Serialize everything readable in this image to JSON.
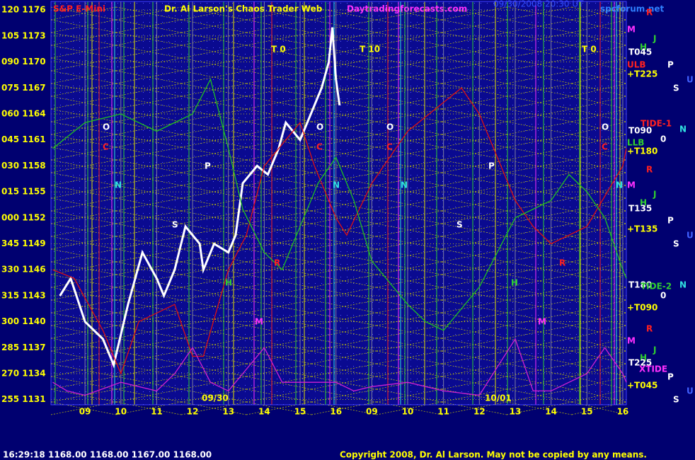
{
  "chart_data": {
    "type": "line",
    "header": {
      "symbol": "S&P E-Mini",
      "title": "Dr. Al Larson's Chaos Trader Web",
      "site": "Daytradingforecasts.com",
      "timestamp": "09/30/2008 20:30 UT",
      "forum": "spcforum.net"
    },
    "ylim": [
      1130.4,
      1177
    ],
    "yticks": [
      {
        "value": 1176,
        "label": "120 1176"
      },
      {
        "value": 1173,
        "label": "105 1173"
      },
      {
        "value": 1170,
        "label": "090 1170"
      },
      {
        "value": 1167,
        "label": "075 1167"
      },
      {
        "value": 1164,
        "label": "060 1164"
      },
      {
        "value": 1161,
        "label": "045 1161"
      },
      {
        "value": 1158,
        "label": "030 1158"
      },
      {
        "value": 1155,
        "label": "015 1155"
      },
      {
        "value": 1152,
        "label": "000 1152"
      },
      {
        "value": 1149,
        "label": "345 1149"
      },
      {
        "value": 1146,
        "label": "330 1146"
      },
      {
        "value": 1143,
        "label": "315 1143"
      },
      {
        "value": 1140,
        "label": "300 1140"
      },
      {
        "value": 1137,
        "label": "285 1137"
      },
      {
        "value": 1134,
        "label": "270 1134"
      },
      {
        "value": 1131,
        "label": "255 1131"
      }
    ],
    "xlim": [
      -0.95,
      15.1
    ],
    "xticks": [
      {
        "value": 0,
        "label": "09"
      },
      {
        "value": 1,
        "label": "10"
      },
      {
        "value": 2,
        "label": "11"
      },
      {
        "value": 3,
        "label": "12"
      },
      {
        "value": 4,
        "label": "13"
      },
      {
        "value": 5,
        "label": "14"
      },
      {
        "value": 6,
        "label": "15"
      },
      {
        "value": 7,
        "label": "16"
      },
      {
        "value": 8,
        "label": "09"
      },
      {
        "value": 9,
        "label": "10"
      },
      {
        "value": 10,
        "label": "11"
      },
      {
        "value": 11,
        "label": "12"
      },
      {
        "value": 12,
        "label": "13"
      },
      {
        "value": 13,
        "label": "14"
      },
      {
        "value": 14,
        "label": "15"
      },
      {
        "value": 15,
        "label": "16"
      }
    ],
    "dates": [
      "09/30",
      "10/01"
    ],
    "grid": true,
    "series": [
      {
        "color": "#ffffff",
        "x": [
          -0.7,
          -0.4,
          0,
          0.5,
          0.8,
          1.2,
          1.6,
          2,
          2.2,
          2.5,
          2.8,
          3.2,
          3.3,
          3.6,
          4,
          4.2,
          4.4,
          4.8,
          5.1,
          5.4,
          5.6,
          6,
          6.2,
          6.6,
          6.8,
          6.9,
          7,
          7.1
        ],
        "values": [
          1143,
          1145,
          1140,
          1138,
          1135,
          1142,
          1148,
          1145,
          1143,
          1146,
          1151,
          1149,
          1146,
          1149,
          1148,
          1150,
          1156,
          1158,
          1157,
          1160,
          1163,
          1161,
          1163,
          1167,
          1170,
          1174,
          1168,
          1165
        ]
      },
      {
        "color": "#e01010",
        "x": [
          -0.9,
          -0.3,
          0.5,
          1,
          1.5,
          2.5,
          3,
          3.3,
          4,
          4.5,
          5,
          6,
          6.4,
          7,
          7.3,
          8,
          9,
          10.5,
          11,
          12,
          12.5,
          13,
          14,
          15,
          15.1
        ],
        "values": [
          1146,
          1145,
          1139,
          1134,
          1140,
          1142,
          1136,
          1136,
          1146,
          1150,
          1158,
          1163,
          1158,
          1152,
          1150,
          1156,
          1162,
          1167,
          1164,
          1154,
          1151,
          1149,
          1151,
          1158,
          1160
        ]
      },
      {
        "color": "#20c020",
        "x": [
          -0.9,
          0,
          1,
          2,
          3,
          3.5,
          4,
          4.4,
          5,
          5.5,
          6,
          6.5,
          7,
          7.5,
          8,
          9,
          9.5,
          10,
          11,
          12,
          13,
          13.5,
          14,
          14.5,
          15,
          15.1
        ],
        "values": [
          1160,
          1163,
          1164,
          1162,
          1164,
          1168,
          1160,
          1153,
          1148,
          1146,
          1151,
          1156,
          1159,
          1154,
          1147,
          1142,
          1140,
          1139,
          1144,
          1152,
          1154,
          1157,
          1155,
          1152,
          1146,
          1145
        ]
      },
      {
        "color": "#d020d0",
        "x": [
          -0.9,
          -0.5,
          0,
          1,
          2,
          2.5,
          3,
          3.5,
          4,
          5,
          5.5,
          6,
          7,
          7.5,
          8,
          9,
          10,
          11,
          12,
          12.5,
          13,
          14,
          14.5,
          15,
          15.1
        ],
        "values": [
          1133,
          1132,
          1131.5,
          1133,
          1132,
          1134,
          1137,
          1133,
          1132,
          1137,
          1133,
          1133,
          1133,
          1132,
          1132.5,
          1133,
          1132,
          1131.5,
          1138,
          1132,
          1132,
          1134,
          1137,
          1134,
          1133
        ]
      }
    ],
    "chart_markers": [
      "T 0",
      "T 10",
      "T 0",
      "O",
      "O",
      "O",
      "O",
      "C",
      "C",
      "C",
      "C",
      "N",
      "N",
      "N",
      "N",
      "P",
      "P",
      "S",
      "S",
      "H",
      "H",
      "M",
      "M",
      "R",
      "R"
    ],
    "right_labels": [
      "R",
      "M",
      "J",
      "H",
      "T045",
      "ULB",
      "P",
      "+T225",
      "U",
      "S",
      "TIDE-1",
      "N",
      "T090",
      "0",
      "LLB",
      "+T180",
      "R",
      "M",
      "J",
      "H",
      "T135",
      "P",
      "+T135",
      "U",
      "S",
      "T180",
      "TIDE-2",
      "N",
      "0",
      "+T090",
      "R",
      "M",
      "J",
      "H",
      "T225",
      "XTIDE",
      "P",
      "+T045",
      "U",
      "S"
    ],
    "footer": {
      "time": "16:29:18",
      "quote": "1168.00 1168.00 1167.00 1168.00",
      "copyright": "Copyright 2008, Dr. Al Larson. May not be copied by any means."
    }
  }
}
